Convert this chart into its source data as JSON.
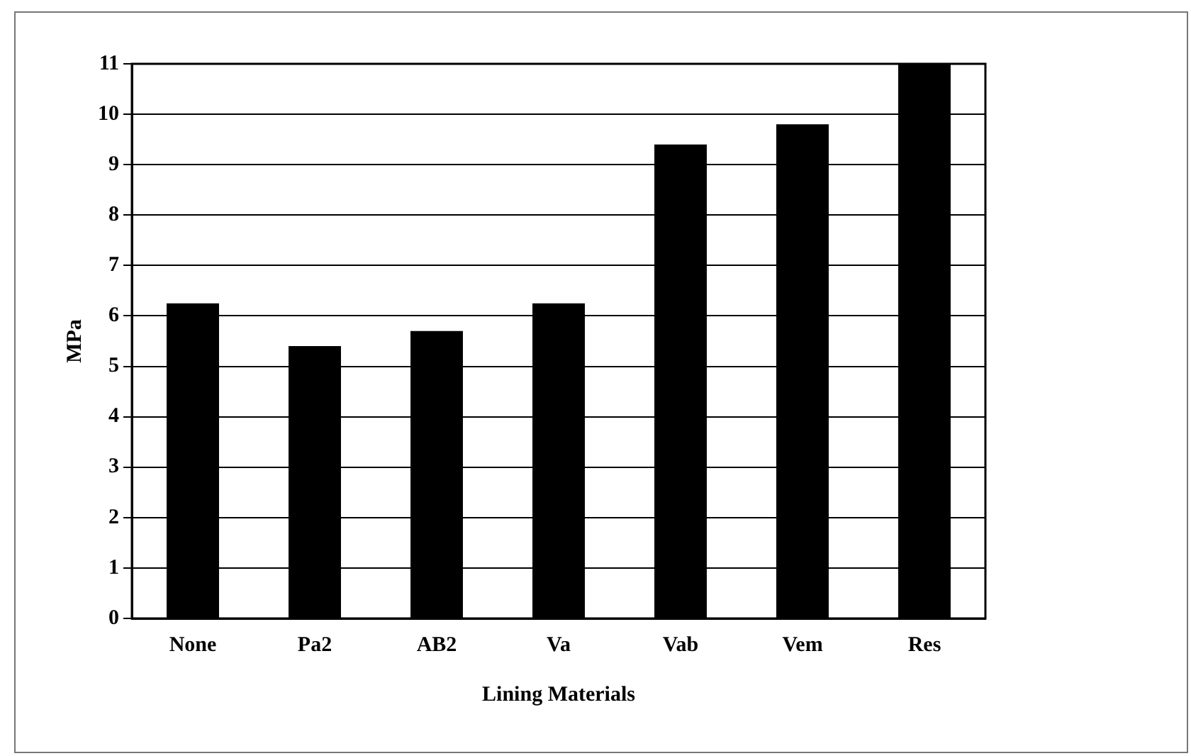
{
  "chart_data": {
    "type": "bar",
    "xlabel": "Lining Materials",
    "ylabel": "MPa",
    "categories": [
      "None",
      "Pa2",
      "AB2",
      "Va",
      "Vab",
      "Vem",
      "Res"
    ],
    "values": [
      6.25,
      5.4,
      5.7,
      6.25,
      9.4,
      9.8,
      11
    ],
    "color": "#000000",
    "ylim": [
      0,
      11
    ],
    "yticks": [
      0,
      1,
      2,
      3,
      4,
      5,
      6,
      7,
      8,
      9,
      10,
      11
    ],
    "grid": "y",
    "legend": false
  }
}
